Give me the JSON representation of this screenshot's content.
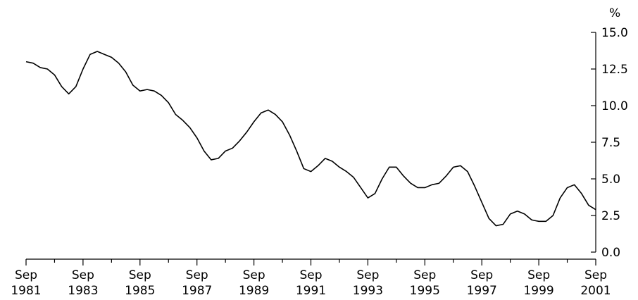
{
  "chart_data": {
    "type": "line",
    "y_unit": "%",
    "ylim": [
      0,
      15
    ],
    "y_ticks": [
      "0.0",
      "2.5",
      "5.0",
      "7.5",
      "10.0",
      "12.5",
      "15.0"
    ],
    "x_start": "Sep 1981",
    "x_end": "Sep 2001",
    "x_ticks": [
      {
        "top": "Sep",
        "bottom": "1981"
      },
      {
        "top": "Sep",
        "bottom": "1983"
      },
      {
        "top": "Sep",
        "bottom": "1985"
      },
      {
        "top": "Sep",
        "bottom": "1987"
      },
      {
        "top": "Sep",
        "bottom": "1989"
      },
      {
        "top": "Sep",
        "bottom": "1991"
      },
      {
        "top": "Sep",
        "bottom": "1993"
      },
      {
        "top": "Sep",
        "bottom": "1995"
      },
      {
        "top": "Sep",
        "bottom": "1997"
      },
      {
        "top": "Sep",
        "bottom": "1999"
      },
      {
        "top": "Sep",
        "bottom": "2001"
      }
    ],
    "grid": false,
    "y_axis_side": "right",
    "line_color": "#000000",
    "series": [
      {
        "x": [
          "Sep 1981",
          "Dec 1981",
          "Mar 1982",
          "Jun 1982",
          "Sep 1982",
          "Dec 1982",
          "Mar 1983",
          "Jun 1983",
          "Sep 1983",
          "Dec 1983",
          "Mar 1984",
          "Jun 1984",
          "Sep 1984",
          "Dec 1984",
          "Mar 1985",
          "Jun 1985",
          "Sep 1985",
          "Dec 1985",
          "Mar 1986",
          "Jun 1986",
          "Sep 1986",
          "Dec 1986",
          "Mar 1987",
          "Jun 1987",
          "Sep 1987",
          "Dec 1987",
          "Mar 1988",
          "Jun 1988",
          "Sep 1988",
          "Dec 1988",
          "Mar 1989",
          "Jun 1989",
          "Sep 1989",
          "Dec 1989",
          "Mar 1990",
          "Jun 1990",
          "Sep 1990",
          "Dec 1990",
          "Mar 1991",
          "Jun 1991",
          "Sep 1991",
          "Dec 1991",
          "Mar 1992",
          "Jun 1992",
          "Sep 1992",
          "Dec 1992",
          "Mar 1993",
          "Jun 1993",
          "Sep 1993",
          "Dec 1993",
          "Mar 1994",
          "Jun 1994",
          "Sep 1994",
          "Dec 1994",
          "Mar 1995",
          "Jun 1995",
          "Sep 1995",
          "Dec 1995",
          "Mar 1996",
          "Jun 1996",
          "Sep 1996",
          "Dec 1996",
          "Mar 1997",
          "Jun 1997",
          "Sep 1997",
          "Dec 1997",
          "Mar 1998",
          "Jun 1998",
          "Sep 1998",
          "Dec 1998",
          "Mar 1999",
          "Jun 1999",
          "Sep 1999",
          "Dec 1999",
          "Mar 2000",
          "Jun 2000",
          "Sep 2000",
          "Dec 2000",
          "Mar 2001",
          "Jun 2001",
          "Sep 2001"
        ],
        "values": [
          13.0,
          12.9,
          12.6,
          12.5,
          12.1,
          11.3,
          10.8,
          11.3,
          12.5,
          13.5,
          13.7,
          13.5,
          13.3,
          12.9,
          12.3,
          11.4,
          11.0,
          11.1,
          11.0,
          10.7,
          10.2,
          9.4,
          9.0,
          8.5,
          7.8,
          6.9,
          6.3,
          6.4,
          6.9,
          7.1,
          7.6,
          8.2,
          8.9,
          9.5,
          9.7,
          9.4,
          8.9,
          8.0,
          6.9,
          5.7,
          5.5,
          5.9,
          6.4,
          6.2,
          5.8,
          5.5,
          5.1,
          4.4,
          3.7,
          4.0,
          5.0,
          5.8,
          5.8,
          5.2,
          4.7,
          4.4,
          4.4,
          4.6,
          4.7,
          5.2,
          5.8,
          5.9,
          5.5,
          4.5,
          3.4,
          2.3,
          1.8,
          1.9,
          2.6,
          2.8,
          2.6,
          2.2,
          2.1,
          2.1,
          2.5,
          3.7,
          4.4,
          4.6,
          4.0,
          3.2,
          2.9
        ]
      }
    ]
  }
}
